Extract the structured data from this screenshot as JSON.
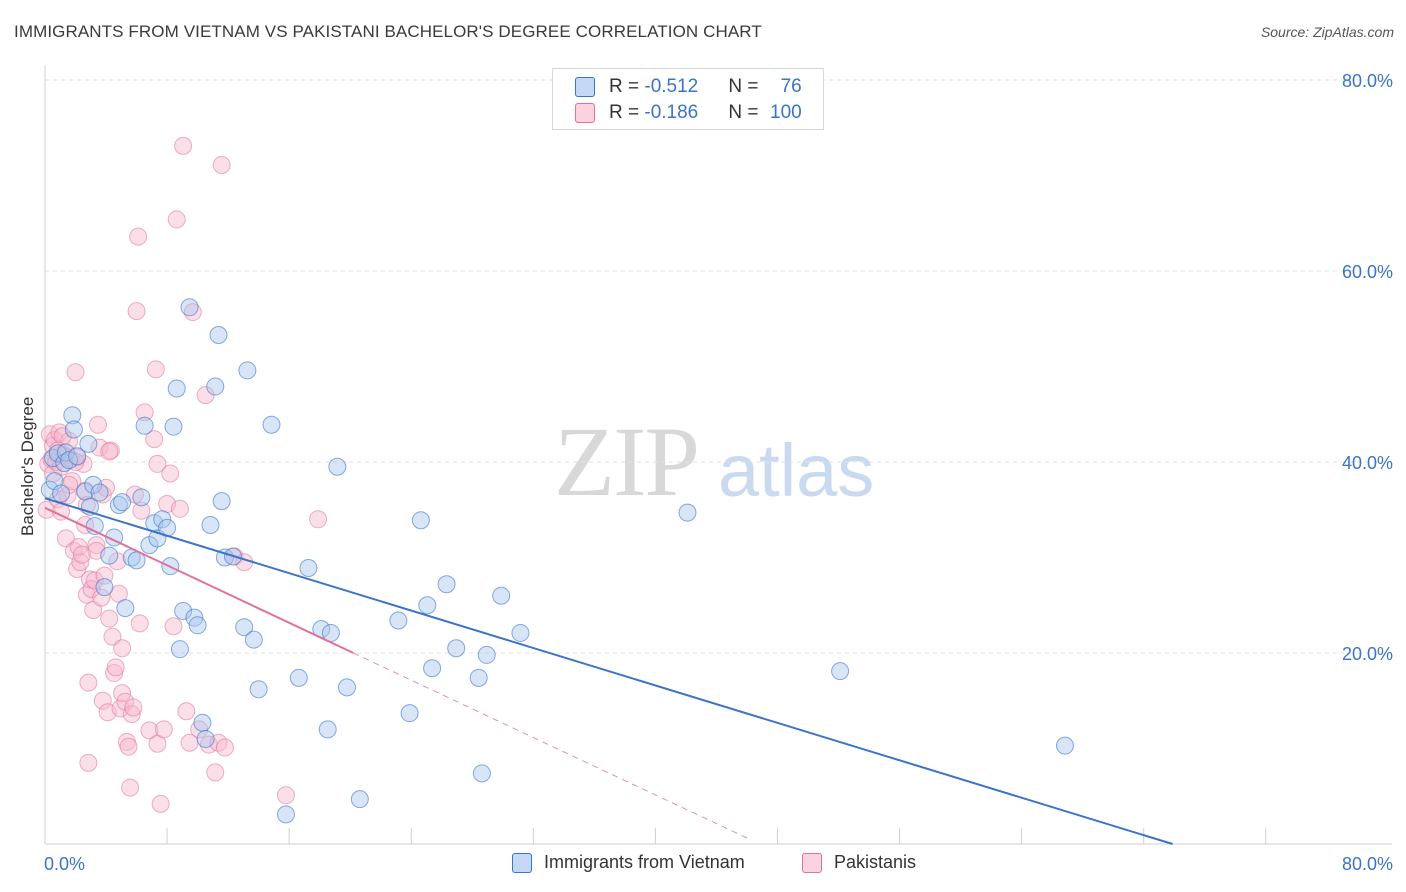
{
  "title": "IMMIGRANTS FROM VIETNAM VS PAKISTANI BACHELOR'S DEGREE CORRELATION CHART",
  "source": "Source: ZipAtlas.com",
  "watermark": {
    "zip": "ZIP",
    "atlas": "atlas"
  },
  "colors": {
    "blue": "#3a74c9",
    "blue_fill": "#a9c6ee",
    "pink": "#e0719a",
    "pink_fill": "#f6b9cd",
    "grid": "#e2e2e2"
  },
  "legend_top": {
    "rows": [
      {
        "r_label": "R = ",
        "r_value": "-0.512",
        "n_label": "N = ",
        "n_value": "76"
      },
      {
        "r_label": "R = ",
        "r_value": "-0.186",
        "n_label": "N = ",
        "n_value": "100"
      }
    ]
  },
  "legend_bottom": {
    "series1": "Immigrants from Vietnam",
    "series2": "Pakistanis"
  },
  "chart_data": {
    "type": "scatter",
    "title": "IMMIGRANTS FROM VIETNAM VS PAKISTANI BACHELOR'S DEGREE CORRELATION CHART",
    "xlabel": "",
    "ylabel": "Bachelor's Degree",
    "xlim": [
      0,
      80
    ],
    "ylim": [
      0,
      80
    ],
    "x_tick_labels": [
      "0.0%",
      "80.0%"
    ],
    "y_tick_labels": [
      "20.0%",
      "40.0%",
      "60.0%",
      "80.0%"
    ],
    "y_ticks": [
      20,
      40,
      60,
      80
    ],
    "x_minor_ticks": [
      7.6,
      15.2,
      22.8,
      30.4,
      38.0,
      45.6,
      53.2,
      60.8,
      68.4,
      76.0
    ],
    "grid": true,
    "series": [
      {
        "name": "Immigrants from Vietnam",
        "r": -0.512,
        "n": 76,
        "trend": {
          "x0": 0,
          "y0": 36.2,
          "x1": 70.2,
          "y1": 0
        },
        "points": [
          [
            0.3,
            37.1
          ],
          [
            0.5,
            40.4
          ],
          [
            0.6,
            38.0
          ],
          [
            0.8,
            40.9
          ],
          [
            1.0,
            36.7
          ],
          [
            1.2,
            39.9
          ],
          [
            1.3,
            41.0
          ],
          [
            1.5,
            40.2
          ],
          [
            1.7,
            44.9
          ],
          [
            1.8,
            43.4
          ],
          [
            2.0,
            40.6
          ],
          [
            2.5,
            36.9
          ],
          [
            2.7,
            41.9
          ],
          [
            2.8,
            35.3
          ],
          [
            3.0,
            37.6
          ],
          [
            3.1,
            33.3
          ],
          [
            3.4,
            36.8
          ],
          [
            3.7,
            26.9
          ],
          [
            4.0,
            30.2
          ],
          [
            4.3,
            32.1
          ],
          [
            4.6,
            35.5
          ],
          [
            4.8,
            35.8
          ],
          [
            5.0,
            24.7
          ],
          [
            5.4,
            30.0
          ],
          [
            5.7,
            29.7
          ],
          [
            6.0,
            36.3
          ],
          [
            6.2,
            43.8
          ],
          [
            6.5,
            31.3
          ],
          [
            6.8,
            33.6
          ],
          [
            7.0,
            32.0
          ],
          [
            7.3,
            34.0
          ],
          [
            7.6,
            33.1
          ],
          [
            7.8,
            29.1
          ],
          [
            8.0,
            43.7
          ],
          [
            8.2,
            47.7
          ],
          [
            8.4,
            20.4
          ],
          [
            8.6,
            24.4
          ],
          [
            9.0,
            56.2
          ],
          [
            9.3,
            23.7
          ],
          [
            9.5,
            22.9
          ],
          [
            9.8,
            12.7
          ],
          [
            10.0,
            11.0
          ],
          [
            10.3,
            33.4
          ],
          [
            10.6,
            47.9
          ],
          [
            10.8,
            53.3
          ],
          [
            11.0,
            35.9
          ],
          [
            11.2,
            30.0
          ],
          [
            11.7,
            30.1
          ],
          [
            12.4,
            22.7
          ],
          [
            12.6,
            49.6
          ],
          [
            13.0,
            21.4
          ],
          [
            13.3,
            16.2
          ],
          [
            14.1,
            43.9
          ],
          [
            15.0,
            3.1
          ],
          [
            15.8,
            17.4
          ],
          [
            16.4,
            28.9
          ],
          [
            17.2,
            22.5
          ],
          [
            17.6,
            12.0
          ],
          [
            17.8,
            22.1
          ],
          [
            18.2,
            39.5
          ],
          [
            18.8,
            16.4
          ],
          [
            19.6,
            4.7
          ],
          [
            22.0,
            23.4
          ],
          [
            22.7,
            13.7
          ],
          [
            23.4,
            33.9
          ],
          [
            23.8,
            25.0
          ],
          [
            24.1,
            18.4
          ],
          [
            25.0,
            27.2
          ],
          [
            25.6,
            20.5
          ],
          [
            27.0,
            17.4
          ],
          [
            27.2,
            7.4
          ],
          [
            27.5,
            19.8
          ],
          [
            28.4,
            26.0
          ],
          [
            29.6,
            22.1
          ],
          [
            40.0,
            34.7
          ],
          [
            49.5,
            18.1
          ],
          [
            63.5,
            10.3
          ]
        ]
      },
      {
        "name": "Pakistanis",
        "r": -0.186,
        "n": 100,
        "trend_solid": {
          "x0": 0,
          "y0": 35.2,
          "x1": 19.2,
          "y1": 20.0
        },
        "trend_dashed": {
          "x0": 19.2,
          "y0": 20.0,
          "x1": 44.0,
          "y1": 0.4
        },
        "points": [
          [
            0.1,
            35.0
          ],
          [
            0.2,
            39.8
          ],
          [
            0.3,
            42.9
          ],
          [
            0.4,
            40.3
          ],
          [
            0.5,
            38.8
          ],
          [
            0.5,
            41.7
          ],
          [
            0.6,
            42.3
          ],
          [
            0.7,
            40.0
          ],
          [
            0.8,
            36.1
          ],
          [
            0.9,
            43.1
          ],
          [
            1.0,
            39.5
          ],
          [
            1.0,
            34.8
          ],
          [
            1.2,
            40.7
          ],
          [
            1.3,
            32.0
          ],
          [
            1.4,
            36.5
          ],
          [
            1.5,
            42.2
          ],
          [
            1.6,
            40.3
          ],
          [
            1.7,
            38.0
          ],
          [
            1.8,
            30.7
          ],
          [
            1.9,
            49.4
          ],
          [
            2.0,
            28.8
          ],
          [
            2.1,
            31.1
          ],
          [
            2.2,
            29.5
          ],
          [
            2.3,
            30.3
          ],
          [
            2.4,
            39.8
          ],
          [
            2.5,
            37.0
          ],
          [
            2.6,
            26.1
          ],
          [
            2.6,
            35.5
          ],
          [
            2.7,
            16.9
          ],
          [
            2.7,
            8.5
          ],
          [
            2.8,
            27.7
          ],
          [
            2.9,
            26.7
          ],
          [
            3.0,
            24.5
          ],
          [
            3.1,
            27.6
          ],
          [
            3.2,
            31.3
          ],
          [
            3.3,
            43.9
          ],
          [
            3.4,
            41.5
          ],
          [
            3.5,
            25.8
          ],
          [
            3.6,
            15.0
          ],
          [
            3.6,
            36.6
          ],
          [
            3.7,
            28.1
          ],
          [
            3.8,
            37.3
          ],
          [
            3.9,
            13.8
          ],
          [
            4.0,
            23.6
          ],
          [
            4.1,
            41.2
          ],
          [
            4.2,
            21.7
          ],
          [
            4.3,
            17.9
          ],
          [
            4.4,
            18.5
          ],
          [
            4.5,
            29.6
          ],
          [
            4.6,
            26.2
          ],
          [
            4.7,
            14.2
          ],
          [
            4.8,
            20.5
          ],
          [
            4.8,
            15.8
          ],
          [
            5.0,
            14.9
          ],
          [
            5.1,
            10.7
          ],
          [
            5.2,
            10.2
          ],
          [
            5.3,
            5.9
          ],
          [
            5.4,
            13.6
          ],
          [
            5.5,
            14.3
          ],
          [
            5.6,
            36.6
          ],
          [
            5.7,
            55.8
          ],
          [
            5.8,
            63.6
          ],
          [
            5.9,
            23.1
          ],
          [
            6.0,
            34.9
          ],
          [
            6.2,
            45.2
          ],
          [
            6.5,
            11.9
          ],
          [
            6.8,
            42.4
          ],
          [
            6.9,
            49.7
          ],
          [
            7.0,
            39.8
          ],
          [
            7.0,
            10.5
          ],
          [
            7.2,
            4.2
          ],
          [
            7.4,
            12.0
          ],
          [
            7.6,
            35.6
          ],
          [
            7.8,
            38.8
          ],
          [
            8.0,
            22.8
          ],
          [
            8.2,
            65.4
          ],
          [
            8.4,
            35.1
          ],
          [
            8.6,
            73.1
          ],
          [
            8.8,
            13.9
          ],
          [
            9.0,
            10.6
          ],
          [
            9.2,
            55.7
          ],
          [
            9.6,
            12.0
          ],
          [
            10.0,
            47.0
          ],
          [
            10.2,
            10.4
          ],
          [
            10.6,
            7.5
          ],
          [
            10.8,
            10.6
          ],
          [
            11.0,
            71.1
          ],
          [
            11.2,
            10.1
          ],
          [
            11.8,
            30.1
          ],
          [
            12.4,
            29.5
          ],
          [
            15.0,
            5.1
          ],
          [
            17.0,
            34.0
          ],
          [
            1.1,
            42.7
          ],
          [
            1.5,
            37.6
          ],
          [
            2.0,
            40.5
          ],
          [
            2.5,
            33.4
          ],
          [
            3.2,
            30.7
          ],
          [
            4.0,
            41.1
          ],
          [
            0.8,
            41.2
          ],
          [
            1.9,
            40.0
          ]
        ]
      }
    ]
  }
}
